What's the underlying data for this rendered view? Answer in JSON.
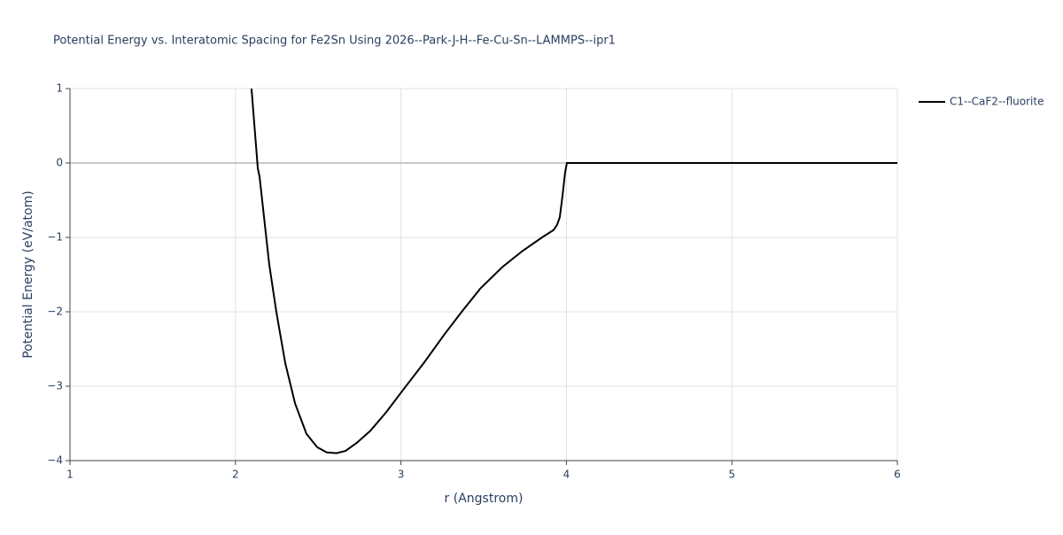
{
  "chart_data": {
    "type": "line",
    "title": "Potential Energy vs. Interatomic Spacing for Fe2Sn Using 2026--Park-J-H--Fe-Cu-Sn--LAMMPS--ipr1",
    "x_label": "r (Angstrom)",
    "y_label": "Potential Energy (eV/atom)",
    "x": [
      2.097,
      2.135,
      2.146,
      2.204,
      2.247,
      2.301,
      2.36,
      2.429,
      2.494,
      2.552,
      2.611,
      2.665,
      2.734,
      2.815,
      2.911,
      3.013,
      3.141,
      3.264,
      3.371,
      3.479,
      3.612,
      3.736,
      3.853,
      3.923,
      3.944,
      3.96,
      3.976,
      3.992,
      4.003,
      4.5,
      5.0,
      5.5,
      6.0
    ],
    "series": [
      {
        "name": "C1--CaF2--fluorite",
        "color": "#000000",
        "values": [
          1.0,
          -0.07,
          -0.19,
          -1.36,
          -2.0,
          -2.69,
          -3.23,
          -3.64,
          -3.82,
          -3.89,
          -3.9,
          -3.87,
          -3.76,
          -3.6,
          -3.35,
          -3.05,
          -2.68,
          -2.3,
          -1.99,
          -1.69,
          -1.4,
          -1.18,
          -1.0,
          -0.9,
          -0.83,
          -0.73,
          -0.45,
          -0.13,
          0,
          0,
          0,
          0,
          0
        ]
      }
    ],
    "xlim": [
      1,
      6
    ],
    "xticks": [
      1,
      2,
      3,
      4,
      5,
      6
    ],
    "ylim": [
      -4,
      1
    ],
    "yticks": [
      {
        "value": -4,
        "label": "−4"
      },
      {
        "value": -3,
        "label": "−3"
      },
      {
        "value": -2,
        "label": "−2"
      },
      {
        "value": -1,
        "label": "−1"
      },
      0,
      1
    ],
    "grid": true,
    "zeroline": true,
    "legend": "right"
  }
}
